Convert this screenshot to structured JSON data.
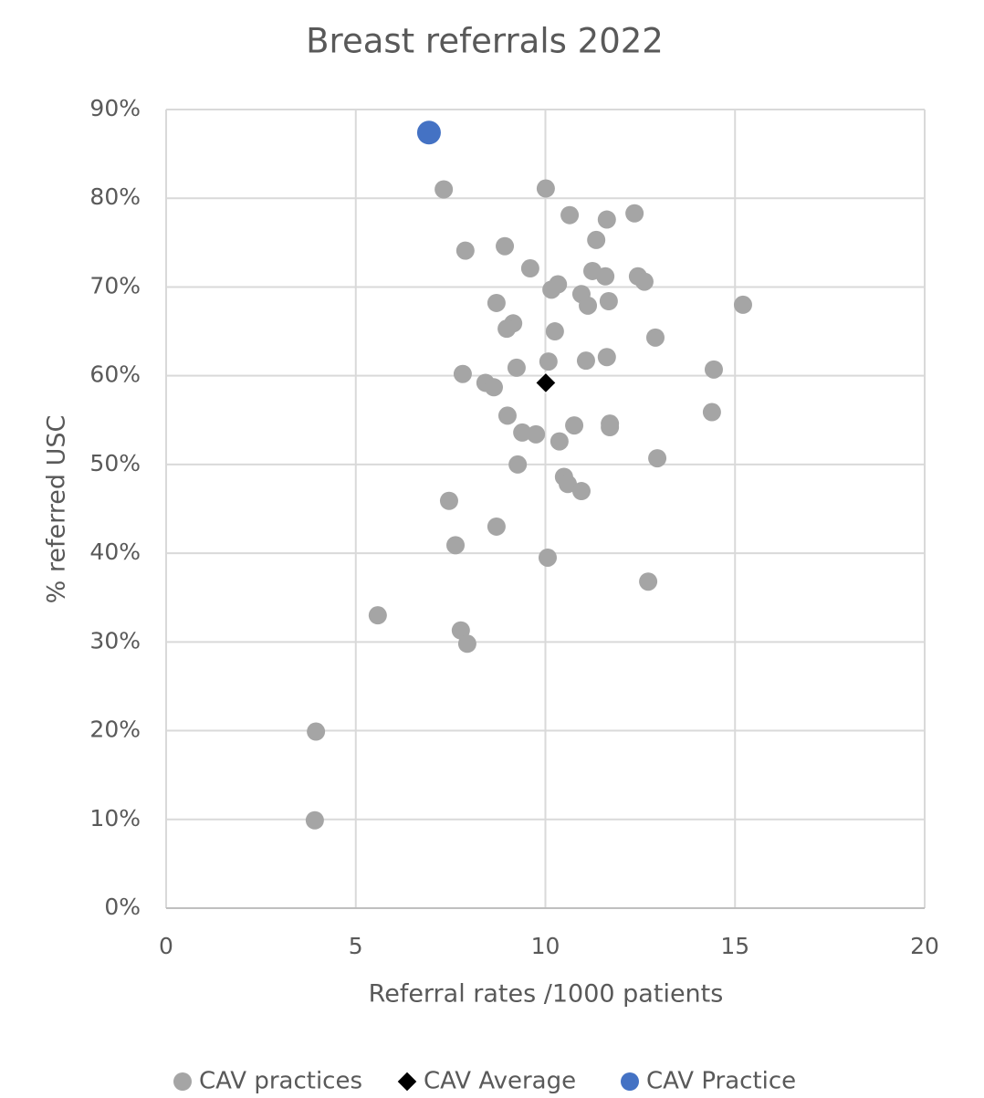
{
  "chart_data": {
    "type": "scatter",
    "title": "Breast referrals 2022",
    "xlabel": "Referral rates /1000 patients",
    "ylabel": "% referred USC",
    "xlim": [
      0,
      20
    ],
    "ylim": [
      0,
      90
    ],
    "xticks": [
      0,
      5,
      10,
      15,
      20
    ],
    "yticks": [
      {
        "value": 0,
        "label": "0%"
      },
      {
        "value": 10,
        "label": "10%"
      },
      {
        "value": 20,
        "label": "20%"
      },
      {
        "value": 30,
        "label": "30%"
      },
      {
        "value": 40,
        "label": "40%"
      },
      {
        "value": 50,
        "label": "50%"
      },
      {
        "value": 60,
        "label": "60%"
      },
      {
        "value": 70,
        "label": "70%"
      },
      {
        "value": 80,
        "label": "80%"
      },
      {
        "value": 90,
        "label": "90%"
      }
    ],
    "grid": true,
    "legend": "bottom",
    "series": [
      {
        "name": "CAV practices",
        "color": "#a5a5a5",
        "marker": "circle",
        "x": [
          7.32,
          10.01,
          10.64,
          11.62,
          12.35,
          11.34,
          7.89,
          8.93,
          9.6,
          11.24,
          11.58,
          12.44,
          12.61,
          10.33,
          10.16,
          10.95,
          11.12,
          11.67,
          15.21,
          8.71,
          9.15,
          8.98,
          10.25,
          12.9,
          10.08,
          11.07,
          11.62,
          7.82,
          9.24,
          14.44,
          8.42,
          8.64,
          9.0,
          14.39,
          9.39,
          9.75,
          10.76,
          11.7,
          11.7,
          10.37,
          12.95,
          9.27,
          10.49,
          10.59,
          10.95,
          7.46,
          8.71,
          7.63,
          10.06,
          12.71,
          5.58,
          7.77,
          7.94,
          3.95,
          3.92
        ],
        "values": [
          81.0,
          81.1,
          78.1,
          77.6,
          78.3,
          75.3,
          74.1,
          74.6,
          72.1,
          71.8,
          71.2,
          71.2,
          70.6,
          70.3,
          69.7,
          69.2,
          67.9,
          68.4,
          68.0,
          68.2,
          65.9,
          65.3,
          65.0,
          64.3,
          61.6,
          61.7,
          62.1,
          60.2,
          60.9,
          60.7,
          59.2,
          58.7,
          55.5,
          55.9,
          53.6,
          53.4,
          54.4,
          54.6,
          54.2,
          52.6,
          50.7,
          50.0,
          48.6,
          47.8,
          47.0,
          45.9,
          43.0,
          40.9,
          39.5,
          36.8,
          33.0,
          31.3,
          29.8,
          19.9,
          9.9
        ]
      },
      {
        "name": "CAV Average",
        "color": "#000000",
        "marker": "diamond",
        "x": [
          10.01
        ],
        "values": [
          59.2
        ]
      },
      {
        "name": "CAV Practice",
        "color": "#4472c4",
        "marker": "circle-large",
        "x": [
          6.93
        ],
        "values": [
          87.4
        ]
      }
    ]
  }
}
